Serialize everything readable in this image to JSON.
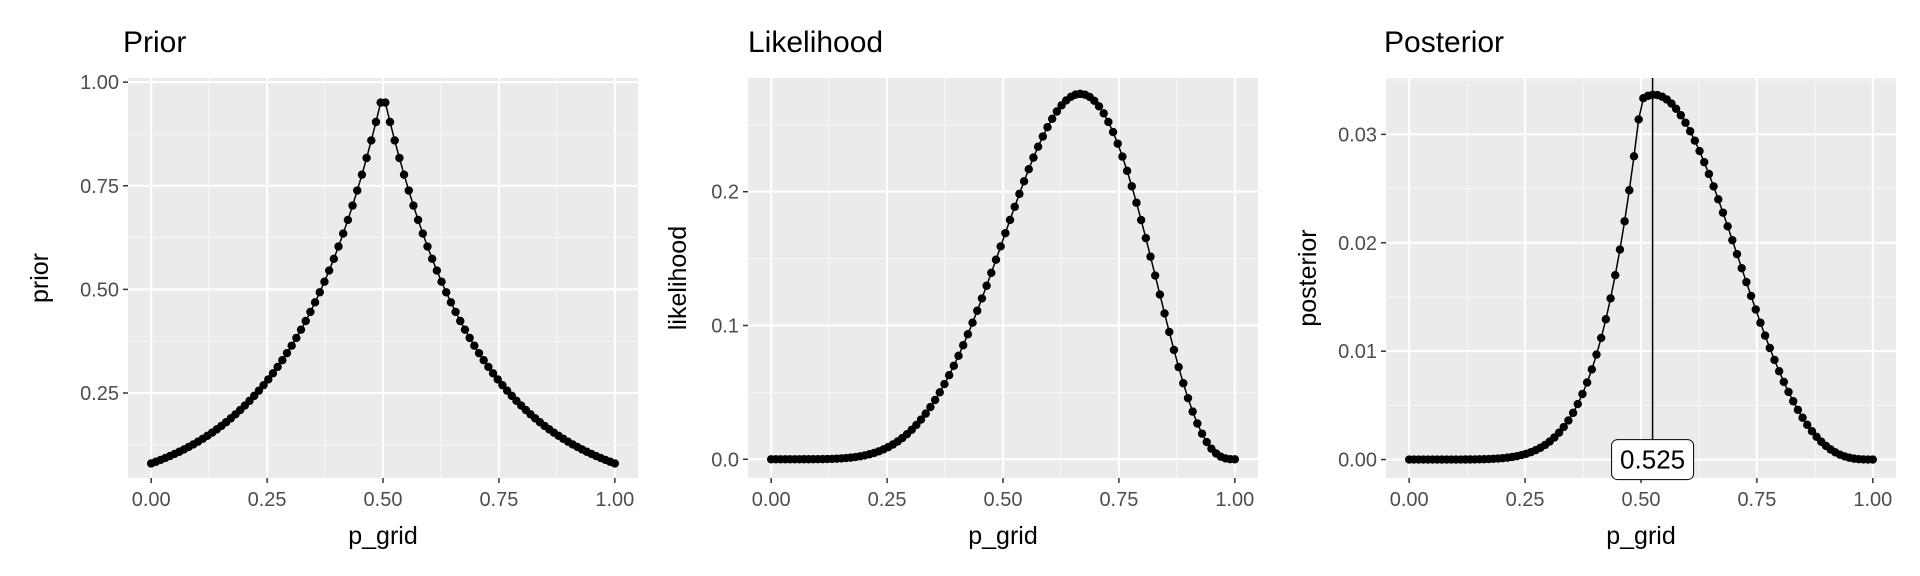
{
  "chart_data": [
    {
      "type": "line",
      "title": "Prior",
      "xlabel": "p_grid",
      "ylabel": "prior",
      "xlim": [
        -0.05,
        1.05
      ],
      "ylim": [
        0.045,
        1.01
      ],
      "xticks": [
        0,
        0.25,
        0.5,
        0.75,
        1
      ],
      "xtick_labels": [
        "0.00",
        "0.25",
        "0.50",
        "0.75",
        "1.00"
      ],
      "yticks": [
        0.25,
        0.5,
        0.75,
        1
      ],
      "ytick_labels": [
        "0.25",
        "0.50",
        "0.75",
        "1.00"
      ],
      "grid": true,
      "n_points": 100,
      "series": [
        {
          "formula": "exp(-5*|x-0.5|) normalized to max at x=0.5, y range 0.082 to 0.975",
          "x_start": 0,
          "x_end": 1,
          "points": 100,
          "markers": true,
          "line": true
        }
      ]
    },
    {
      "type": "line",
      "title": "Likelihood",
      "xlabel": "p_grid",
      "ylabel": "likelihood",
      "xlim": [
        -0.05,
        1.05
      ],
      "ylim": [
        -0.014,
        0.285
      ],
      "xticks": [
        0,
        0.25,
        0.5,
        0.75,
        1
      ],
      "xtick_labels": [
        "0.00",
        "0.25",
        "0.50",
        "0.75",
        "1.00"
      ],
      "yticks": [
        0,
        0.1,
        0.2
      ],
      "ytick_labels": [
        "0.0",
        "0.1",
        "0.2"
      ],
      "grid": true,
      "series": [
        {
          "formula": "binomial(6 of 9), peak 0.273 at x=0.667",
          "x_start": 0,
          "x_end": 1,
          "points": 100,
          "markers": true,
          "line": true
        }
      ]
    },
    {
      "type": "line",
      "title": "Posterior",
      "xlabel": "p_grid",
      "ylabel": "posterior",
      "xlim": [
        -0.05,
        1.05
      ],
      "ylim": [
        -0.0017,
        0.0352
      ],
      "xticks": [
        0,
        0.25,
        0.5,
        0.75,
        1
      ],
      "xtick_labels": [
        "0.00",
        "0.25",
        "0.50",
        "0.75",
        "1.00"
      ],
      "yticks": [
        0,
        0.01,
        0.02,
        0.03
      ],
      "ytick_labels": [
        "0.00",
        "0.01",
        "0.02",
        "0.03"
      ],
      "grid": true,
      "series": [
        {
          "formula": "normalized prior*likelihood, peak ~0.0337 at x≈0.525",
          "x_start": 0,
          "x_end": 1,
          "points": 100,
          "markers": true,
          "line": true
        }
      ],
      "vline_x": 0.525,
      "annotation": {
        "text": "0.525",
        "x": 0.525,
        "y": 0
      }
    }
  ]
}
